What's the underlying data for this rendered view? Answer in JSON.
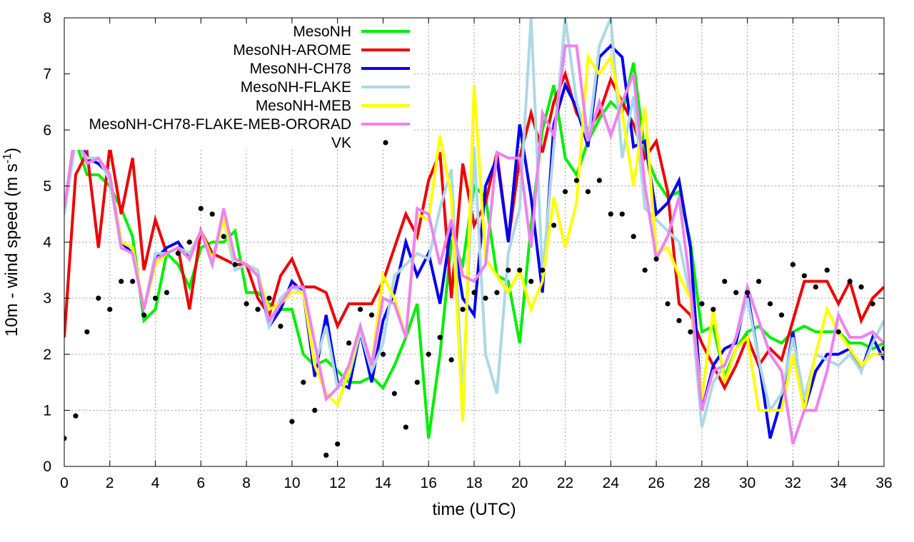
{
  "chart_data": {
    "type": "line",
    "title": "",
    "xlabel": "time (UTC)",
    "ylabel_main": "10m - wind speed  (m s",
    "ylabel_sup": "-1",
    "ylabel_end": ")",
    "xlim": [
      0,
      36
    ],
    "ylim": [
      0,
      8
    ],
    "xticks": [
      0,
      2,
      4,
      6,
      8,
      10,
      12,
      14,
      16,
      18,
      20,
      22,
      24,
      26,
      28,
      30,
      32,
      34,
      36
    ],
    "yticks": [
      0,
      1,
      2,
      3,
      4,
      5,
      6,
      7,
      8
    ],
    "grid": true,
    "legend_position": "top-left",
    "series": [
      {
        "name": "MesoNH",
        "color": "#00ee00",
        "style": "line",
        "x": [
          0,
          0.5,
          1,
          1.5,
          2,
          2.5,
          3,
          3.5,
          4,
          4.5,
          5,
          5.5,
          6,
          6.5,
          7,
          7.5,
          8,
          8.5,
          9,
          9.5,
          10,
          10.5,
          11,
          11.5,
          12,
          12.5,
          13,
          13.5,
          14,
          14.5,
          15,
          15.5,
          16,
          16.5,
          17,
          17.5,
          18,
          18.5,
          19,
          19.5,
          20,
          20.5,
          21,
          21.5,
          22,
          22.5,
          23,
          23.5,
          24,
          24.5,
          25,
          25.5,
          26,
          26.5,
          27,
          27.5,
          28,
          28.5,
          29,
          29.5,
          30,
          30.5,
          31,
          31.5,
          32,
          32.5,
          33,
          33.5,
          34,
          34.5,
          35,
          35.5,
          36
        ],
        "values": [
          4.6,
          5.8,
          5.2,
          5.2,
          5.0,
          4.6,
          4.1,
          2.6,
          2.8,
          3.8,
          3.6,
          3.2,
          3.9,
          4.0,
          4.0,
          4.2,
          3.1,
          3.1,
          2.9,
          2.8,
          2.8,
          2.0,
          1.8,
          1.9,
          1.7,
          1.5,
          1.5,
          1.6,
          1.4,
          1.8,
          2.3,
          2.9,
          0.5,
          2.0,
          4.0,
          3.6,
          5.0,
          4.8,
          3.4,
          3.3,
          2.2,
          4.3,
          6.0,
          6.8,
          5.5,
          5.2,
          5.8,
          6.2,
          6.5,
          6.3,
          7.2,
          5.6,
          5.1,
          4.8,
          4.9,
          4.0,
          2.4,
          2.5,
          1.6,
          2.1,
          2.4,
          2.5,
          2.3,
          2.2,
          2.4,
          2.5,
          2.4,
          2.4,
          2.4,
          2.2,
          2.2,
          2.1,
          2.2
        ]
      },
      {
        "name": "MesoNH-AROME",
        "color": "#ee0000",
        "style": "line",
        "x": [
          0,
          0.5,
          1,
          1.5,
          2,
          2.5,
          3,
          3.5,
          4,
          4.5,
          5,
          5.5,
          6,
          6.5,
          7,
          7.5,
          8,
          8.5,
          9,
          9.5,
          10,
          10.5,
          11,
          11.5,
          12,
          12.5,
          13,
          13.5,
          14,
          14.5,
          15,
          15.5,
          16,
          16.5,
          17,
          17.5,
          18,
          18.5,
          19,
          19.5,
          20,
          20.5,
          21,
          21.5,
          22,
          22.5,
          23,
          23.5,
          24,
          24.5,
          25,
          25.5,
          26,
          26.5,
          27,
          27.5,
          28,
          28.5,
          29,
          29.5,
          30,
          30.5,
          31,
          31.5,
          32,
          32.5,
          33,
          33.5,
          34,
          34.5,
          35,
          35.5,
          36
        ],
        "values": [
          2.3,
          5.2,
          5.6,
          3.9,
          5.7,
          4.5,
          5.5,
          3.5,
          4.4,
          3.8,
          3.9,
          2.8,
          4.2,
          3.8,
          3.7,
          3.6,
          3.6,
          3.0,
          2.7,
          3.4,
          3.7,
          3.2,
          3.2,
          3.1,
          2.5,
          2.9,
          2.9,
          2.9,
          3.3,
          3.9,
          4.5,
          4.1,
          5.1,
          5.6,
          3.0,
          5.4,
          4.3,
          4.7,
          5.6,
          4.0,
          5.5,
          6.3,
          5.6,
          6.5,
          7.0,
          6.3,
          6.0,
          6.3,
          6.9,
          6.5,
          6.1,
          5.5,
          5.8,
          4.9,
          2.9,
          2.7,
          2.2,
          1.8,
          1.4,
          1.8,
          2.3,
          1.8,
          2.1,
          1.9,
          2.6,
          3.3,
          3.3,
          3.3,
          2.9,
          3.3,
          2.6,
          3.0,
          3.2
        ]
      },
      {
        "name": "MesoNH-CH78",
        "color": "#0000ee",
        "style": "line",
        "x": [
          0,
          0.5,
          1,
          1.5,
          2,
          2.5,
          3,
          3.5,
          4,
          4.5,
          5,
          5.5,
          6,
          6.5,
          7,
          7.5,
          8,
          8.5,
          9,
          9.5,
          10,
          10.5,
          11,
          11.5,
          12,
          12.5,
          13,
          13.5,
          14,
          14.5,
          15,
          15.5,
          16,
          16.5,
          17,
          17.5,
          18,
          18.5,
          19,
          19.5,
          20,
          20.5,
          21,
          21.5,
          22,
          22.5,
          23,
          23.5,
          24,
          24.5,
          25,
          25.5,
          26,
          26.5,
          27,
          27.5,
          28,
          28.5,
          29,
          29.5,
          30,
          30.5,
          31,
          31.5,
          32,
          32.5,
          33,
          33.5,
          34,
          34.5,
          35,
          35.5,
          36
        ],
        "values": [
          4.6,
          6.0,
          5.5,
          5.4,
          5.2,
          4.0,
          3.8,
          2.8,
          3.7,
          3.9,
          4.0,
          3.7,
          4.2,
          3.7,
          4.4,
          3.7,
          3.6,
          3.4,
          2.5,
          2.8,
          3.3,
          3.1,
          1.6,
          2.7,
          1.5,
          1.4,
          2.4,
          1.5,
          2.6,
          3.1,
          4.0,
          3.4,
          3.8,
          2.9,
          4.3,
          3.0,
          2.7,
          5.0,
          5.5,
          4.0,
          6.1,
          4.8,
          3.1,
          6.1,
          6.8,
          6.4,
          5.7,
          7.3,
          7.5,
          7.3,
          5.7,
          5.8,
          4.5,
          4.7,
          5.1,
          3.9,
          1.0,
          1.8,
          2.1,
          2.2,
          3.1,
          1.9,
          0.5,
          1.2,
          2.4,
          1.0,
          1.7,
          2.0,
          2.0,
          2.1,
          1.7,
          2.3,
          1.9
        ]
      },
      {
        "name": "MesoNH-FLAKE",
        "color": "#add8e6",
        "style": "line",
        "x": [
          0,
          0.5,
          1,
          1.5,
          2,
          2.5,
          3,
          3.5,
          4,
          4.5,
          5,
          5.5,
          6,
          6.5,
          7,
          7.5,
          8,
          8.5,
          9,
          9.5,
          10,
          10.5,
          11,
          11.5,
          12,
          12.5,
          13,
          13.5,
          14,
          14.5,
          15,
          15.5,
          16,
          16.5,
          17,
          17.5,
          18,
          18.5,
          19,
          19.5,
          20,
          20.5,
          21,
          21.5,
          22,
          22.5,
          23,
          23.5,
          24,
          24.5,
          25,
          25.5,
          26,
          26.5,
          27,
          27.5,
          28,
          28.5,
          29,
          29.5,
          30,
          30.5,
          31,
          31.5,
          32,
          32.5,
          33,
          33.5,
          34,
          34.5,
          35,
          35.5,
          36
        ],
        "values": [
          4.5,
          5.8,
          5.5,
          5.5,
          5.1,
          3.9,
          3.8,
          2.8,
          3.8,
          3.8,
          3.9,
          3.8,
          4.2,
          3.7,
          4.4,
          3.5,
          3.6,
          3.5,
          2.5,
          3.0,
          3.2,
          3.1,
          1.8,
          2.5,
          1.4,
          1.6,
          2.4,
          1.7,
          2.2,
          3.4,
          3.6,
          3.8,
          3.7,
          4.6,
          5.3,
          1.2,
          5.7,
          2.0,
          1.3,
          3.8,
          4.6,
          8.0,
          3.4,
          5.7,
          8.0,
          6.5,
          5.8,
          7.5,
          8.0,
          5.5,
          6.6,
          4.6,
          4.4,
          4.2,
          4.0,
          3.0,
          0.7,
          1.5,
          1.8,
          2.3,
          3.0,
          1.9,
          1.0,
          1.3,
          2.3,
          1.2,
          2.0,
          1.9,
          1.8,
          2.0,
          1.7,
          2.2,
          2.6
        ]
      },
      {
        "name": "MesoNH-MEB",
        "color": "#ffff00",
        "style": "line",
        "x": [
          0,
          0.5,
          1,
          1.5,
          2,
          2.5,
          3,
          3.5,
          4,
          4.5,
          5,
          5.5,
          6,
          6.5,
          7,
          7.5,
          8,
          8.5,
          9,
          9.5,
          10,
          10.5,
          11,
          11.5,
          12,
          12.5,
          13,
          13.5,
          14,
          14.5,
          15,
          15.5,
          16,
          16.5,
          17,
          17.5,
          18,
          18.5,
          19,
          19.5,
          20,
          20.5,
          21,
          21.5,
          22,
          22.5,
          23,
          23.5,
          24,
          24.5,
          25,
          25.5,
          26,
          26.5,
          27,
          27.5,
          28,
          28.5,
          29,
          29.5,
          30,
          30.5,
          31,
          31.5,
          32,
          32.5,
          33,
          33.5,
          34,
          34.5,
          35,
          35.5,
          36
        ],
        "values": [
          4.6,
          6.0,
          5.4,
          5.5,
          5.2,
          4.0,
          3.9,
          2.8,
          3.6,
          3.8,
          3.9,
          3.7,
          4.2,
          3.7,
          4.4,
          3.7,
          3.6,
          3.4,
          2.8,
          2.9,
          3.1,
          3.1,
          1.8,
          1.3,
          1.1,
          1.7,
          2.5,
          1.8,
          3.4,
          3.0,
          2.3,
          4.5,
          4.4,
          5.9,
          4.8,
          0.8,
          6.8,
          3.7,
          3.4,
          3.1,
          3.5,
          2.8,
          3.3,
          4.8,
          3.9,
          4.7,
          7.3,
          7.0,
          7.3,
          6.3,
          5.0,
          6.4,
          3.8,
          3.9,
          3.4,
          3.0,
          1.2,
          2.8,
          1.5,
          2.1,
          2.3,
          1.0,
          1.0,
          1.0,
          2.0,
          1.0,
          2.0,
          2.8,
          2.4,
          2.1,
          1.8,
          2.0,
          2.0
        ]
      },
      {
        "name": "MesoNH-CH78-FLAKE-MEB-ORORAD",
        "color": "#ee82ee",
        "style": "line",
        "x": [
          0,
          0.5,
          1,
          1.5,
          2,
          2.5,
          3,
          3.5,
          4,
          4.5,
          5,
          5.5,
          6,
          6.5,
          7,
          7.5,
          8,
          8.5,
          9,
          9.5,
          10,
          10.5,
          11,
          11.5,
          12,
          12.5,
          13,
          13.5,
          14,
          14.5,
          15,
          15.5,
          16,
          16.5,
          17,
          17.5,
          18,
          18.5,
          19,
          19.5,
          20,
          20.5,
          21,
          21.5,
          22,
          22.5,
          23,
          23.5,
          24,
          24.5,
          25,
          25.5,
          26,
          26.5,
          27,
          27.5,
          28,
          28.5,
          29,
          29.5,
          30,
          30.5,
          31,
          31.5,
          32,
          32.5,
          33,
          33.5,
          34,
          34.5,
          35,
          35.5,
          36
        ],
        "values": [
          4.6,
          6.0,
          5.4,
          5.5,
          5.2,
          3.9,
          3.8,
          2.8,
          3.7,
          3.8,
          3.9,
          3.7,
          4.2,
          3.6,
          4.6,
          3.7,
          3.6,
          3.4,
          2.6,
          2.9,
          3.2,
          3.2,
          2.2,
          1.2,
          1.4,
          1.8,
          2.5,
          1.8,
          3.0,
          2.9,
          2.3,
          4.6,
          4.5,
          3.6,
          4.4,
          3.4,
          3.3,
          3.6,
          5.6,
          5.5,
          5.5,
          3.9,
          6.3,
          5.9,
          7.5,
          7.5,
          5.8,
          6.5,
          5.9,
          6.5,
          7.0,
          5.0,
          3.7,
          4.1,
          4.8,
          3.2,
          1.0,
          1.7,
          1.8,
          2.3,
          3.2,
          2.6,
          2.0,
          1.7,
          0.4,
          1.0,
          1.0,
          1.7,
          2.7,
          2.3,
          2.3,
          2.4,
          2.2
        ]
      },
      {
        "name": "VK",
        "color": "#000000",
        "style": "points",
        "x": [
          0,
          0.5,
          1,
          1.5,
          2,
          2.5,
          3,
          3.5,
          4,
          4.5,
          5,
          5.5,
          6,
          6.5,
          7,
          7.5,
          8,
          8.5,
          9,
          9.5,
          10,
          10.5,
          11,
          11.5,
          12,
          12.5,
          13,
          13.5,
          14,
          14.5,
          15,
          15.5,
          16,
          16.5,
          17,
          17.5,
          18,
          18.5,
          19,
          19.5,
          20,
          20.5,
          21,
          21.5,
          22,
          22.5,
          23,
          23.5,
          24,
          24.5,
          25,
          25.5,
          26,
          26.5,
          27,
          27.5,
          28,
          28.5,
          29,
          29.5,
          30,
          30.5,
          31,
          31.5,
          32,
          32.5,
          33,
          33.5,
          34,
          34.5,
          35,
          35.5,
          36
        ],
        "values": [
          0.5,
          0.9,
          2.4,
          3.0,
          2.8,
          3.3,
          3.3,
          2.7,
          3.0,
          3.1,
          3.8,
          4.0,
          4.6,
          4.5,
          4.1,
          3.6,
          2.9,
          2.8,
          3.0,
          2.5,
          0.8,
          1.5,
          1.0,
          0.2,
          0.4,
          2.2,
          2.8,
          2.7,
          2.0,
          1.3,
          0.7,
          1.5,
          2.0,
          2.3,
          1.9,
          2.8,
          3.1,
          3.0,
          3.1,
          3.5,
          3.5,
          3.3,
          3.5,
          4.3,
          4.9,
          5.1,
          4.9,
          5.1,
          4.5,
          4.5,
          4.1,
          3.5,
          3.7,
          2.9,
          2.6,
          2.4,
          2.9,
          2.8,
          3.3,
          3.1,
          3.1,
          3.3,
          2.9,
          2.7,
          3.6,
          3.4,
          3.2,
          3.5,
          2.4,
          3.3,
          3.2,
          2.9,
          2.1
        ]
      }
    ],
    "extra_points": [
      {
        "series": "VK",
        "x": 14,
        "y": 5.75
      }
    ]
  }
}
